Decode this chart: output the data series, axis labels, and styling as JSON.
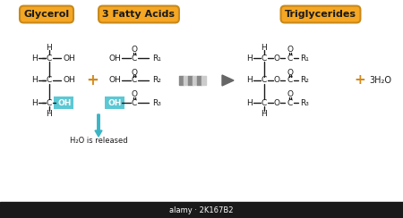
{
  "bg_color": "#ffffff",
  "label_bg": "#f5a623",
  "label_border": "#c8891a",
  "label_text_color": "#1a1a1a",
  "structure_color": "#1a1a1a",
  "highlight_color": "#5bc8d4",
  "arrow_color": "#666666",
  "water_arrow_color": "#3ab5c6",
  "plus_color": "#d4891a",
  "title_glycerol": "Glycerol",
  "title_fatty": "3 Fatty Acids",
  "title_trig": "Triglycerides",
  "water_text": "H₂O is released"
}
